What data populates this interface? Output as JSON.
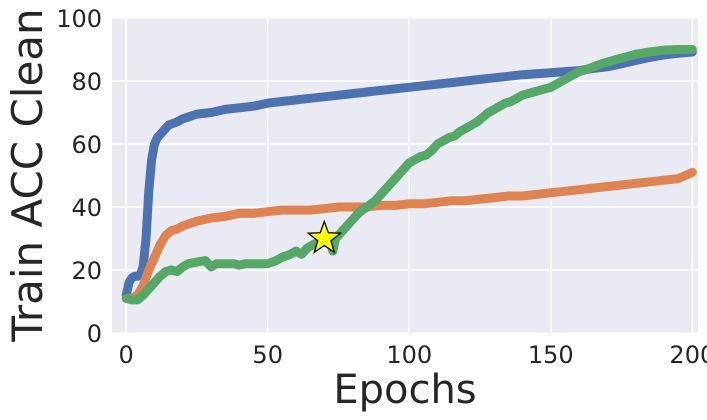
{
  "chart_data": {
    "type": "line",
    "title": "",
    "xlabel": "Epochs",
    "ylabel": "Train ACC Clean",
    "xlim": [
      -5,
      202
    ],
    "ylim": [
      0,
      100
    ],
    "xticks": [
      0,
      50,
      100,
      150,
      200
    ],
    "yticks": [
      0,
      20,
      40,
      60,
      80,
      100
    ],
    "grid": true,
    "legend": "none",
    "series": [
      {
        "color": "#4c72b0",
        "points": [
          [
            0,
            12
          ],
          [
            1,
            16
          ],
          [
            2,
            17.5
          ],
          [
            3,
            18
          ],
          [
            4,
            18
          ],
          [
            5,
            18.5
          ],
          [
            6,
            21
          ],
          [
            7,
            30
          ],
          [
            8,
            45
          ],
          [
            9,
            55
          ],
          [
            10,
            60
          ],
          [
            11,
            62
          ],
          [
            12,
            63
          ],
          [
            13,
            64
          ],
          [
            15,
            66
          ],
          [
            18,
            67
          ],
          [
            20,
            68
          ],
          [
            25,
            69.5
          ],
          [
            30,
            70
          ],
          [
            35,
            71
          ],
          [
            40,
            71.5
          ],
          [
            45,
            72
          ],
          [
            50,
            73
          ],
          [
            55,
            73.5
          ],
          [
            60,
            74
          ],
          [
            65,
            74.5
          ],
          [
            70,
            75
          ],
          [
            75,
            75.5
          ],
          [
            80,
            76
          ],
          [
            85,
            76.5
          ],
          [
            90,
            77
          ],
          [
            95,
            77.5
          ],
          [
            100,
            78
          ],
          [
            105,
            78.5
          ],
          [
            110,
            79
          ],
          [
            115,
            79.5
          ],
          [
            120,
            80
          ],
          [
            125,
            80.5
          ],
          [
            130,
            81
          ],
          [
            135,
            81.5
          ],
          [
            140,
            82
          ],
          [
            145,
            82.3
          ],
          [
            150,
            82.6
          ],
          [
            155,
            83
          ],
          [
            160,
            83.3
          ],
          [
            165,
            84
          ],
          [
            170,
            84.5
          ],
          [
            175,
            85.5
          ],
          [
            180,
            86.5
          ],
          [
            185,
            87.5
          ],
          [
            190,
            88.3
          ],
          [
            195,
            88.8
          ],
          [
            200,
            89.2
          ]
        ]
      },
      {
        "color": "#dd8452",
        "points": [
          [
            0,
            11
          ],
          [
            2,
            11
          ],
          [
            4,
            12
          ],
          [
            6,
            15
          ],
          [
            8,
            20
          ],
          [
            10,
            24
          ],
          [
            12,
            28
          ],
          [
            14,
            31
          ],
          [
            16,
            32.5
          ],
          [
            18,
            33
          ],
          [
            20,
            34
          ],
          [
            25,
            35.5
          ],
          [
            30,
            36.5
          ],
          [
            35,
            37
          ],
          [
            40,
            38
          ],
          [
            45,
            38
          ],
          [
            50,
            38.5
          ],
          [
            55,
            39
          ],
          [
            60,
            39
          ],
          [
            65,
            39
          ],
          [
            70,
            39.5
          ],
          [
            75,
            40
          ],
          [
            80,
            40
          ],
          [
            85,
            40
          ],
          [
            90,
            40.5
          ],
          [
            95,
            40.5
          ],
          [
            100,
            41
          ],
          [
            105,
            41
          ],
          [
            110,
            41.5
          ],
          [
            115,
            42
          ],
          [
            120,
            42
          ],
          [
            125,
            42.5
          ],
          [
            130,
            43
          ],
          [
            135,
            43.5
          ],
          [
            140,
            43.5
          ],
          [
            145,
            44
          ],
          [
            150,
            44.5
          ],
          [
            155,
            45
          ],
          [
            160,
            45.5
          ],
          [
            165,
            46
          ],
          [
            170,
            46.5
          ],
          [
            175,
            47
          ],
          [
            180,
            47.5
          ],
          [
            185,
            48
          ],
          [
            190,
            48.5
          ],
          [
            195,
            49
          ],
          [
            200,
            51
          ]
        ]
      },
      {
        "color": "#55a868",
        "points": [
          [
            0,
            11
          ],
          [
            2,
            10.5
          ],
          [
            4,
            10.5
          ],
          [
            6,
            12
          ],
          [
            8,
            14
          ],
          [
            10,
            16
          ],
          [
            12,
            18
          ],
          [
            14,
            19.5
          ],
          [
            16,
            20
          ],
          [
            18,
            19.5
          ],
          [
            20,
            21
          ],
          [
            22,
            22
          ],
          [
            25,
            22.5
          ],
          [
            28,
            23
          ],
          [
            30,
            21
          ],
          [
            32,
            22
          ],
          [
            35,
            22
          ],
          [
            38,
            22
          ],
          [
            40,
            21.5
          ],
          [
            42,
            22
          ],
          [
            45,
            22
          ],
          [
            50,
            22
          ],
          [
            53,
            23
          ],
          [
            55,
            24
          ],
          [
            58,
            25
          ],
          [
            60,
            26
          ],
          [
            62,
            25
          ],
          [
            64,
            27
          ],
          [
            66,
            28
          ],
          [
            68,
            29
          ],
          [
            70,
            30
          ],
          [
            72,
            29
          ],
          [
            73,
            26
          ],
          [
            74,
            30
          ],
          [
            76,
            32
          ],
          [
            78,
            34
          ],
          [
            80,
            36
          ],
          [
            82,
            38
          ],
          [
            85,
            40
          ],
          [
            88,
            42
          ],
          [
            90,
            44
          ],
          [
            92,
            46
          ],
          [
            95,
            49
          ],
          [
            98,
            52
          ],
          [
            100,
            54
          ],
          [
            102,
            55
          ],
          [
            104,
            56
          ],
          [
            106,
            56.5
          ],
          [
            108,
            58
          ],
          [
            110,
            60
          ],
          [
            112,
            61
          ],
          [
            114,
            62
          ],
          [
            116,
            62.5
          ],
          [
            118,
            64
          ],
          [
            120,
            65
          ],
          [
            122,
            66
          ],
          [
            124,
            67
          ],
          [
            126,
            68.5
          ],
          [
            128,
            70
          ],
          [
            130,
            71
          ],
          [
            132,
            72
          ],
          [
            134,
            73
          ],
          [
            136,
            73.5
          ],
          [
            138,
            74.5
          ],
          [
            140,
            75.5
          ],
          [
            142,
            76
          ],
          [
            144,
            76.5
          ],
          [
            146,
            77
          ],
          [
            148,
            77.5
          ],
          [
            150,
            78
          ],
          [
            152,
            79
          ],
          [
            154,
            80
          ],
          [
            156,
            81
          ],
          [
            158,
            82
          ],
          [
            160,
            83
          ],
          [
            162,
            83.5
          ],
          [
            165,
            84.5
          ],
          [
            168,
            85.5
          ],
          [
            170,
            86
          ],
          [
            173,
            86.8
          ],
          [
            176,
            87.5
          ],
          [
            180,
            88.5
          ],
          [
            185,
            89.2
          ],
          [
            190,
            89.8
          ],
          [
            195,
            90
          ],
          [
            200,
            90
          ]
        ]
      }
    ],
    "annotations": [
      {
        "marker": "star",
        "x": 70,
        "y": 30,
        "color": "#ffff00"
      }
    ]
  }
}
